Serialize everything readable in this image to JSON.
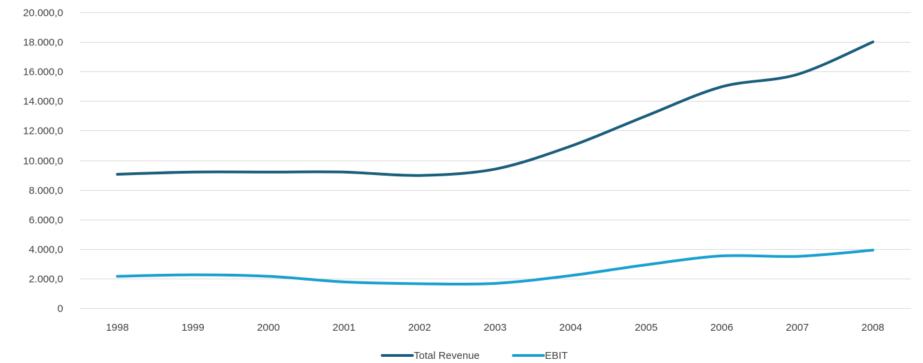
{
  "chart_data": {
    "type": "line",
    "title": "",
    "xlabel": "",
    "ylabel": "",
    "categories": [
      "1998",
      "1999",
      "2000",
      "2001",
      "2002",
      "2003",
      "2004",
      "2005",
      "2006",
      "2007",
      "2008"
    ],
    "ylim": [
      0,
      20000
    ],
    "y_ticks": [
      {
        "value": 0,
        "label": "0"
      },
      {
        "value": 2000,
        "label": "2.000,0"
      },
      {
        "value": 4000,
        "label": "4.000,0"
      },
      {
        "value": 6000,
        "label": "6.000,0"
      },
      {
        "value": 8000,
        "label": "8.000,0"
      },
      {
        "value": 10000,
        "label": "10.000,0"
      },
      {
        "value": 12000,
        "label": "12.000,0"
      },
      {
        "value": 14000,
        "label": "14.000,0"
      },
      {
        "value": 16000,
        "label": "16.000,0"
      },
      {
        "value": 18000,
        "label": "18.000,0"
      },
      {
        "value": 20000,
        "label": "20.000,0"
      }
    ],
    "grid": true,
    "legend_position": "bottom",
    "series": [
      {
        "name": "Total Revenue",
        "color": "#1b5e7b",
        "values": [
          9050,
          9200,
          9200,
          9200,
          8970,
          9400,
          10950,
          13000,
          14970,
          15800,
          18000
        ]
      },
      {
        "name": "EBIT",
        "color": "#1aa0d0",
        "values": [
          2150,
          2250,
          2150,
          1770,
          1650,
          1670,
          2200,
          2930,
          3530,
          3500,
          3920
        ]
      }
    ]
  }
}
